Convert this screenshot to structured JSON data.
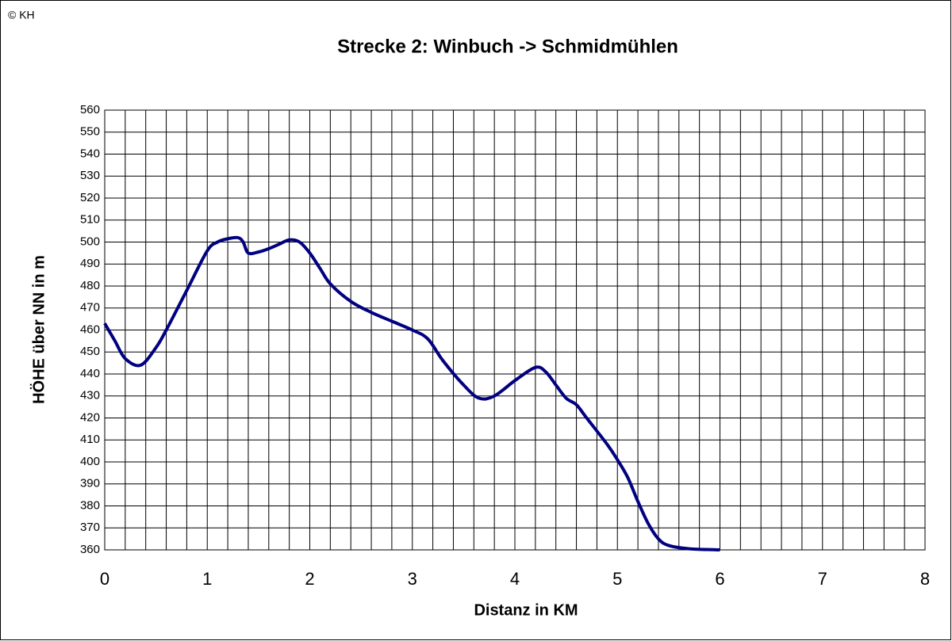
{
  "chart_data": {
    "type": "line",
    "copyright": "© KH",
    "title": "Strecke 2: Winbuch -> Schmidmühlen",
    "x_label": "Distanz in KM",
    "y_label": "HÖHE über NN in m",
    "x": [
      0,
      0.1,
      0.2,
      0.35,
      0.5,
      0.6,
      0.8,
      1.0,
      1.1,
      1.2,
      1.3,
      1.35,
      1.4,
      1.5,
      1.6,
      1.7,
      1.8,
      1.9,
      2.0,
      2.1,
      2.2,
      2.4,
      2.6,
      2.8,
      3.0,
      3.15,
      3.3,
      3.5,
      3.65,
      3.8,
      4.0,
      4.2,
      4.3,
      4.4,
      4.5,
      4.6,
      4.7,
      4.9,
      5.0,
      5.1,
      5.2,
      5.3,
      5.4,
      5.5,
      5.7,
      6.0
    ],
    "series": [
      {
        "name": "Höhe",
        "color": "#000080",
        "values": [
          463,
          455,
          447,
          444,
          452,
          460,
          478,
          496,
          500,
          501.5,
          502,
          500,
          495,
          495.5,
          497,
          499,
          501,
          500,
          495,
          488,
          481,
          473,
          468,
          464,
          460,
          456,
          446,
          435,
          429,
          430,
          437,
          443,
          441,
          435,
          429,
          426,
          420,
          408,
          401,
          393,
          382,
          372,
          365,
          362,
          360.5,
          360
        ]
      }
    ],
    "xlim": [
      0,
      8
    ],
    "xticks": [
      0,
      1,
      2,
      3,
      4,
      5,
      6,
      7,
      8
    ],
    "xminorticks": [
      0.2,
      0.4,
      0.6,
      0.8,
      1.2,
      1.4,
      1.6,
      1.8,
      2.2,
      2.4,
      2.6,
      2.8,
      3.2,
      3.4,
      3.6,
      3.8,
      4.2,
      4.4,
      4.6,
      4.8,
      5.2,
      5.4,
      5.6,
      5.8,
      6.2,
      6.4,
      6.6,
      6.8,
      7.2,
      7.4,
      7.6,
      7.8
    ],
    "ylim": [
      360,
      560
    ],
    "yticks": [
      360,
      370,
      380,
      390,
      400,
      410,
      420,
      430,
      440,
      450,
      460,
      470,
      480,
      490,
      500,
      510,
      520,
      530,
      540,
      550,
      560
    ],
    "grid": true,
    "legend": false
  }
}
